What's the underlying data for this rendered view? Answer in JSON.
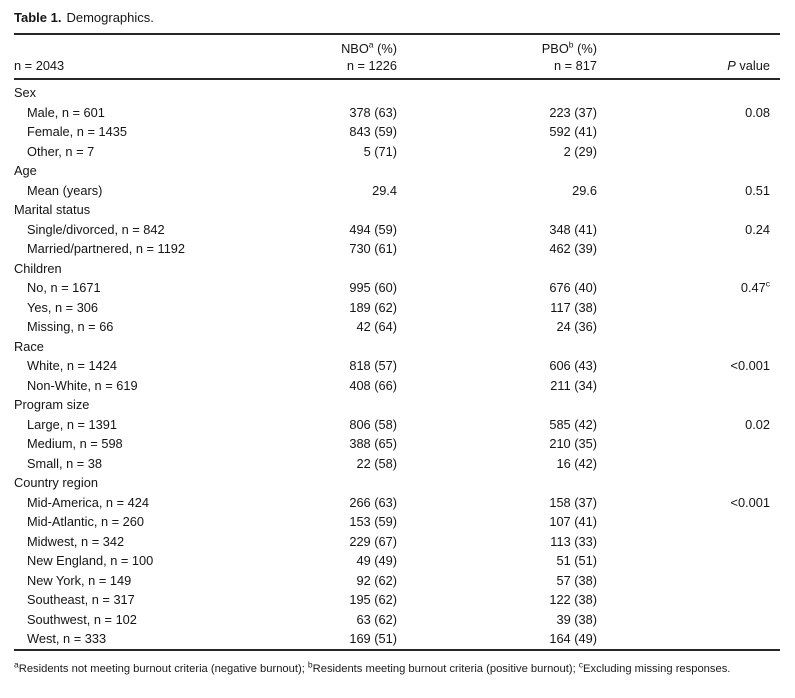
{
  "colors": {
    "background": "#ffffff",
    "text": "#151515",
    "rule": "#262626"
  },
  "title": {
    "label_bold": "Table 1.",
    "label_rest": "Demographics."
  },
  "table": {
    "header": {
      "col1_line2": "n = 2043",
      "col2": {
        "abbr": "NBO",
        "sup": "a",
        "suffix": " (%)",
        "line2": "n = 1226"
      },
      "col3": {
        "abbr": "PBO",
        "sup": "b",
        "suffix": " (%)",
        "line2": "n = 817"
      },
      "col4": {
        "p_italic": "P",
        "p_rest": " value"
      }
    },
    "rows": [
      {
        "type": "group",
        "label": "Sex"
      },
      {
        "type": "data",
        "label": "Male, n = 601",
        "nbo": "378 (63)",
        "pbo": "223 (37)",
        "p": "0.08",
        "p_sup": ""
      },
      {
        "type": "data",
        "label": "Female, n = 1435",
        "nbo": "843 (59)",
        "pbo": "592 (41)",
        "p": "",
        "p_sup": ""
      },
      {
        "type": "data",
        "label": "Other, n = 7",
        "nbo": "5 (71)",
        "pbo": "2 (29)",
        "p": "",
        "p_sup": ""
      },
      {
        "type": "group",
        "label": "Age"
      },
      {
        "type": "data",
        "label": "Mean (years)",
        "nbo": "29.4",
        "pbo": "29.6",
        "p": "0.51",
        "p_sup": ""
      },
      {
        "type": "group",
        "label": "Marital status"
      },
      {
        "type": "data",
        "label": "Single/divorced, n = 842",
        "nbo": "494 (59)",
        "pbo": "348 (41)",
        "p": "0.24",
        "p_sup": ""
      },
      {
        "type": "data",
        "label": "Married/partnered, n = 1192",
        "nbo": "730 (61)",
        "pbo": "462 (39)",
        "p": "",
        "p_sup": ""
      },
      {
        "type": "group",
        "label": "Children"
      },
      {
        "type": "data",
        "label": "No, n = 1671",
        "nbo": "995 (60)",
        "pbo": "676 (40)",
        "p": "0.47",
        "p_sup": "c"
      },
      {
        "type": "data",
        "label": "Yes, n = 306",
        "nbo": "189 (62)",
        "pbo": "117 (38)",
        "p": "",
        "p_sup": ""
      },
      {
        "type": "data",
        "label": "Missing, n = 66",
        "nbo": "42 (64)",
        "pbo": "24 (36)",
        "p": "",
        "p_sup": ""
      },
      {
        "type": "group",
        "label": "Race"
      },
      {
        "type": "data",
        "label": "White, n = 1424",
        "nbo": "818 (57)",
        "pbo": "606 (43)",
        "p": "<0.001",
        "p_sup": ""
      },
      {
        "type": "data",
        "label": "Non-White, n = 619",
        "nbo": "408 (66)",
        "pbo": "211 (34)",
        "p": "",
        "p_sup": ""
      },
      {
        "type": "group",
        "label": "Program size"
      },
      {
        "type": "data",
        "label": "Large, n = 1391",
        "nbo": "806 (58)",
        "pbo": "585 (42)",
        "p": "0.02",
        "p_sup": ""
      },
      {
        "type": "data",
        "label": "Medium, n = 598",
        "nbo": "388 (65)",
        "pbo": "210 (35)",
        "p": "",
        "p_sup": ""
      },
      {
        "type": "data",
        "label": "Small, n = 38",
        "nbo": "22 (58)",
        "pbo": "16 (42)",
        "p": "",
        "p_sup": ""
      },
      {
        "type": "group",
        "label": "Country region"
      },
      {
        "type": "data",
        "label": "Mid-America, n = 424",
        "nbo": "266 (63)",
        "pbo": "158 (37)",
        "p": "<0.001",
        "p_sup": ""
      },
      {
        "type": "data",
        "label": "Mid-Atlantic, n = 260",
        "nbo": "153 (59)",
        "pbo": "107 (41)",
        "p": "",
        "p_sup": ""
      },
      {
        "type": "data",
        "label": "Midwest, n = 342",
        "nbo": "229 (67)",
        "pbo": "113 (33)",
        "p": "",
        "p_sup": ""
      },
      {
        "type": "data",
        "label": "New England, n = 100",
        "nbo": "49 (49)",
        "pbo": "51 (51)",
        "p": "",
        "p_sup": ""
      },
      {
        "type": "data",
        "label": "New York, n = 149",
        "nbo": "92 (62)",
        "pbo": "57 (38)",
        "p": "",
        "p_sup": ""
      },
      {
        "type": "data",
        "label": "Southeast, n = 317",
        "nbo": "195 (62)",
        "pbo": "122 (38)",
        "p": "",
        "p_sup": ""
      },
      {
        "type": "data",
        "label": "Southwest, n = 102",
        "nbo": "63 (62)",
        "pbo": "39 (38)",
        "p": "",
        "p_sup": ""
      },
      {
        "type": "data",
        "label": "West, n = 333",
        "nbo": "169 (51)",
        "pbo": "164 (49)",
        "p": "",
        "p_sup": ""
      }
    ]
  },
  "footnotes": [
    {
      "sup": "a",
      "text": "Residents not meeting burnout criteria (negative burnout); "
    },
    {
      "sup": "b",
      "text": "Residents meeting burnout criteria (positive burnout); "
    },
    {
      "sup": "c",
      "text": "Excluding missing responses."
    }
  ]
}
